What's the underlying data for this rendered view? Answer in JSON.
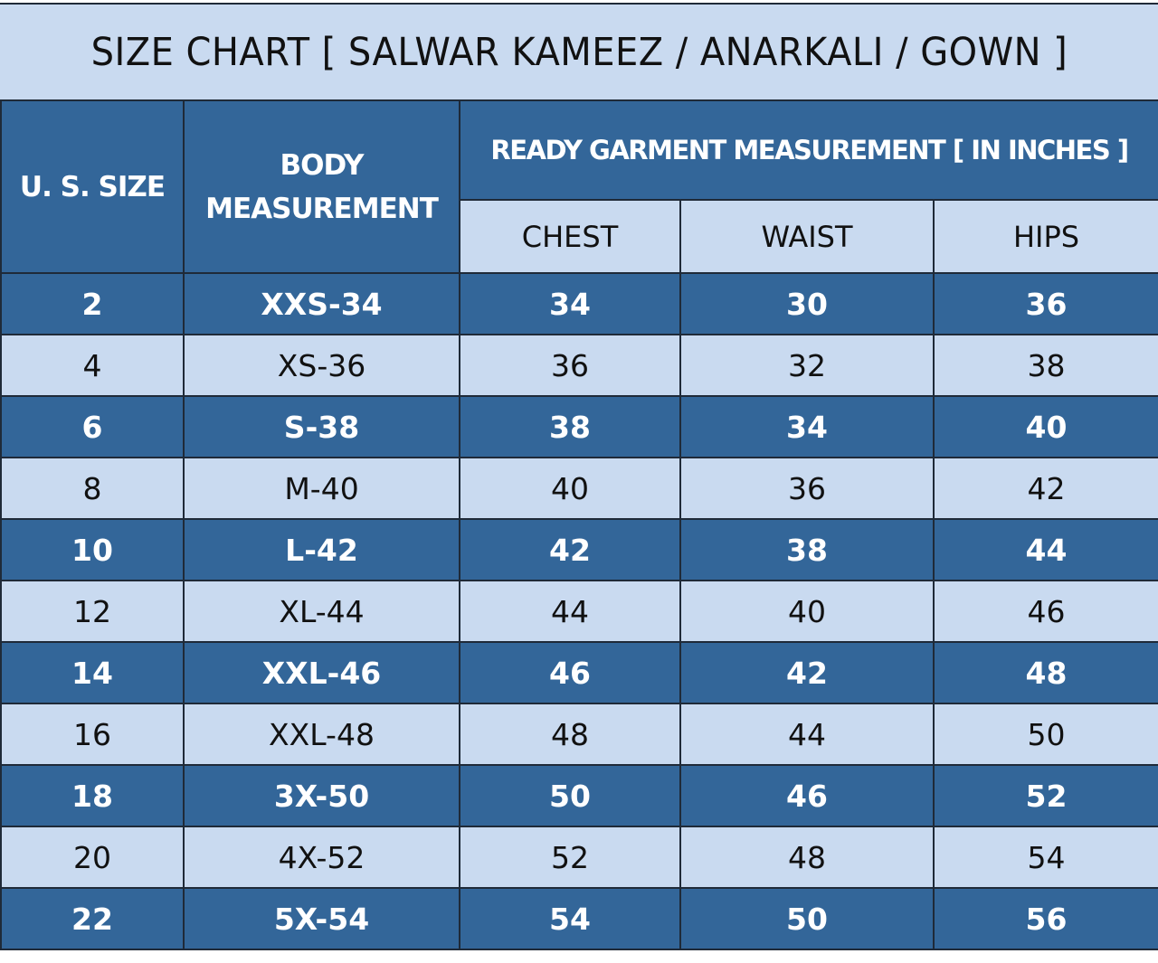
{
  "title": "SIZE CHART [ SALWAR KAMEEZ / ANARKALI  / GOWN ]",
  "headers": {
    "us_size": "U. S. SIZE",
    "body_measurement_line1": "BODY",
    "body_measurement_line2": "MEASUREMENT",
    "group": "READY GARMENT MEASUREMENT [ IN INCHES ]",
    "chest": "CHEST",
    "waist": "WAIST",
    "hips": "HIPS"
  },
  "colors": {
    "dark_row": "#336699",
    "light_row": "#c9daf0",
    "border": "#1f2a38"
  },
  "rows": [
    {
      "size": "2",
      "body": "XXS-34",
      "chest": "34",
      "waist": "30",
      "hips": "36",
      "style": "dark"
    },
    {
      "size": "4",
      "body": "XS-36",
      "chest": "36",
      "waist": "32",
      "hips": "38",
      "style": "light"
    },
    {
      "size": "6",
      "body": "S-38",
      "chest": "38",
      "waist": "34",
      "hips": "40",
      "style": "dark"
    },
    {
      "size": "8",
      "body": "M-40",
      "chest": "40",
      "waist": "36",
      "hips": "42",
      "style": "light"
    },
    {
      "size": "10",
      "body": "L-42",
      "chest": "42",
      "waist": "38",
      "hips": "44",
      "style": "dark"
    },
    {
      "size": "12",
      "body": "XL-44",
      "chest": "44",
      "waist": "40",
      "hips": "46",
      "style": "light"
    },
    {
      "size": "14",
      "body": "XXL-46",
      "chest": "46",
      "waist": "42",
      "hips": "48",
      "style": "dark"
    },
    {
      "size": "16",
      "body": "XXL-48",
      "chest": "48",
      "waist": "44",
      "hips": "50",
      "style": "light"
    },
    {
      "size": "18",
      "body": "3X-50",
      "chest": "50",
      "waist": "46",
      "hips": "52",
      "style": "dark"
    },
    {
      "size": "20",
      "body": "4X-52",
      "chest": "52",
      "waist": "48",
      "hips": "54",
      "style": "light"
    },
    {
      "size": "22",
      "body": "5X-54",
      "chest": "54",
      "waist": "50",
      "hips": "56",
      "style": "dark"
    }
  ]
}
